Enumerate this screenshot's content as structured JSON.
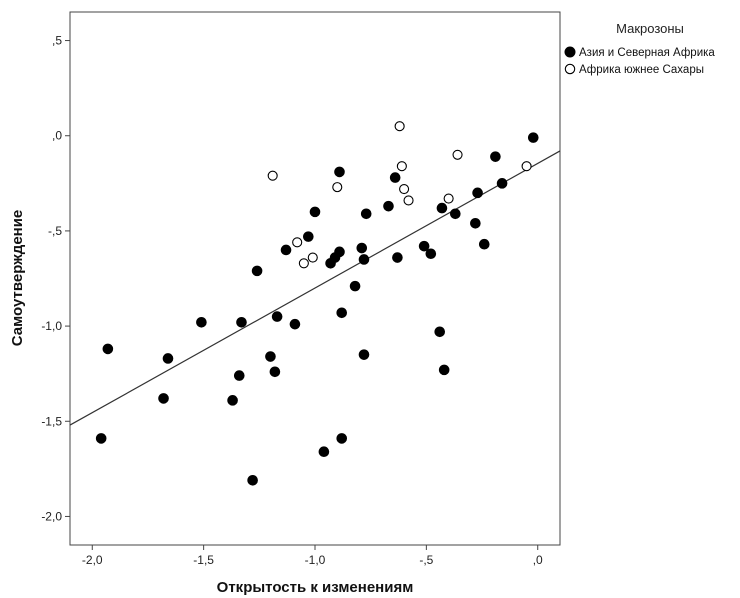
{
  "chart_data": {
    "type": "scatter",
    "xlabel": "Открытость к изменениям",
    "ylabel": "Самоутверждение",
    "xlim": [
      -2.1,
      0.1
    ],
    "ylim": [
      -2.15,
      0.65
    ],
    "x_ticks": [
      {
        "value": -2.0,
        "label": "-2,0"
      },
      {
        "value": -1.5,
        "label": "-1,5"
      },
      {
        "value": -1.0,
        "label": "-1,0"
      },
      {
        "value": -0.5,
        "label": "-,5"
      },
      {
        "value": 0.0,
        "label": ",0"
      }
    ],
    "y_ticks": [
      {
        "value": 0.5,
        "label": ",5"
      },
      {
        "value": 0.0,
        "label": ",0"
      },
      {
        "value": -0.5,
        "label": "-,5"
      },
      {
        "value": -1.0,
        "label": "-1,0"
      },
      {
        "value": -1.5,
        "label": "-1,5"
      },
      {
        "value": -2.0,
        "label": "-2,0"
      }
    ],
    "grid": false,
    "legend": {
      "title": "Макрозоны",
      "position": "outside-right-top"
    },
    "fit_line": {
      "x": [
        -2.1,
        0.1
      ],
      "y": [
        -1.52,
        -0.08
      ]
    },
    "series": [
      {
        "name": "Азия и Северная Африка",
        "marker": "filled-circle",
        "color": "#000000",
        "points": [
          [
            -1.96,
            -1.59
          ],
          [
            -1.93,
            -1.12
          ],
          [
            -1.68,
            -1.38
          ],
          [
            -1.66,
            -1.17
          ],
          [
            -1.51,
            -0.98
          ],
          [
            -1.37,
            -1.39
          ],
          [
            -1.34,
            -1.26
          ],
          [
            -1.33,
            -0.98
          ],
          [
            -1.28,
            -1.81
          ],
          [
            -1.26,
            -0.71
          ],
          [
            -1.2,
            -1.16
          ],
          [
            -1.18,
            -1.24
          ],
          [
            -1.17,
            -0.95
          ],
          [
            -1.13,
            -0.6
          ],
          [
            -1.09,
            -0.99
          ],
          [
            -1.03,
            -0.53
          ],
          [
            -1.0,
            -0.4
          ],
          [
            -0.96,
            -1.66
          ],
          [
            -0.93,
            -0.67
          ],
          [
            -0.91,
            -0.64
          ],
          [
            -0.89,
            -0.19
          ],
          [
            -0.89,
            -0.61
          ],
          [
            -0.88,
            -0.93
          ],
          [
            -0.88,
            -1.59
          ],
          [
            -0.82,
            -0.79
          ],
          [
            -0.79,
            -0.59
          ],
          [
            -0.78,
            -0.65
          ],
          [
            -0.78,
            -1.15
          ],
          [
            -0.77,
            -0.41
          ],
          [
            -0.67,
            -0.37
          ],
          [
            -0.64,
            -0.22
          ],
          [
            -0.63,
            -0.64
          ],
          [
            -0.51,
            -0.58
          ],
          [
            -0.48,
            -0.62
          ],
          [
            -0.44,
            -1.03
          ],
          [
            -0.43,
            -0.38
          ],
          [
            -0.42,
            -1.23
          ],
          [
            -0.37,
            -0.41
          ],
          [
            -0.28,
            -0.46
          ],
          [
            -0.27,
            -0.3
          ],
          [
            -0.24,
            -0.57
          ],
          [
            -0.19,
            -0.11
          ],
          [
            -0.16,
            -0.25
          ],
          [
            -0.02,
            -0.01
          ]
        ]
      },
      {
        "name": "Африка южнее Сахары",
        "marker": "open-circle",
        "color": "#000000",
        "points": [
          [
            -1.19,
            -0.21
          ],
          [
            -1.08,
            -0.56
          ],
          [
            -1.05,
            -0.67
          ],
          [
            -1.01,
            -0.64
          ],
          [
            -0.9,
            -0.27
          ],
          [
            -0.62,
            0.05
          ],
          [
            -0.61,
            -0.16
          ],
          [
            -0.6,
            -0.28
          ],
          [
            -0.58,
            -0.34
          ],
          [
            -0.4,
            -0.33
          ],
          [
            -0.36,
            -0.1
          ],
          [
            -0.05,
            -0.16
          ]
        ]
      }
    ]
  }
}
